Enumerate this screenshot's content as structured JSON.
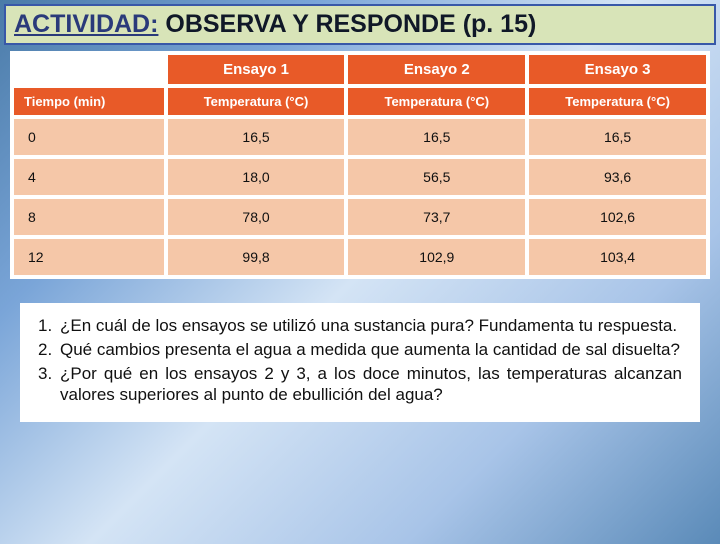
{
  "title": {
    "underlined": "ACTIVIDAD:",
    "rest": " OBSERVA Y RESPONDE  (p. 15)"
  },
  "table": {
    "group_headers": [
      "",
      "Ensayo 1",
      "Ensayo 2",
      "Ensayo 3"
    ],
    "sub_headers": [
      "Tiempo (min)",
      "Temperatura (°C)",
      "Temperatura (°C)",
      "Temperatura (°C)"
    ],
    "rows": [
      [
        "0",
        "16,5",
        "16,5",
        "16,5"
      ],
      [
        "4",
        "18,0",
        "56,5",
        "93,6"
      ],
      [
        "8",
        "78,0",
        "73,7",
        "102,6"
      ],
      [
        "12",
        "99,8",
        "102,9",
        "103,4"
      ]
    ],
    "colors": {
      "header_bg": "#e85a28",
      "header_text": "#ffffff",
      "cell_bg": "#f5c7a8",
      "cell_text": "#101010",
      "table_bg": "#ffffff"
    }
  },
  "questions": [
    {
      "num": "1.",
      "text": "¿En cuál de los ensayos se utilizó una sustancia pura? Fundamenta tu respuesta."
    },
    {
      "num": "2.",
      "text": "Qué cambios presenta el agua a medida que aumenta la cantidad de sal disuelta?"
    },
    {
      "num": "3.",
      "text": "¿Por qué en los ensayos 2 y 3, a los doce minutos, las temperaturas alcanzan valores superiores al punto de ebullición del agua?"
    }
  ]
}
